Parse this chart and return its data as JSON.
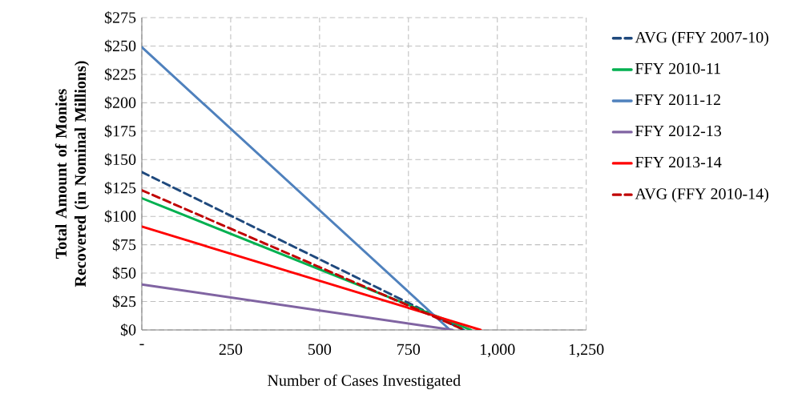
{
  "chart_data": {
    "type": "line",
    "xlabel": "Number of Cases Investigated",
    "ylabel": "Total Amount of Monies Recovered (in Nominal Millions)",
    "xlim": [
      0,
      1250
    ],
    "xticks": [
      {
        "value": 0,
        "label": "-"
      },
      250,
      500,
      750,
      {
        "value": 1000,
        "label": "1,000"
      },
      {
        "value": 1250,
        "label": "1,250"
      }
    ],
    "ylim": [
      0,
      275
    ],
    "yticks": [
      {
        "value": 0,
        "label": "$0"
      },
      {
        "value": 25,
        "label": "$25"
      },
      {
        "value": 50,
        "label": "$50"
      },
      {
        "value": 75,
        "label": "$75"
      },
      {
        "value": 100,
        "label": "$100"
      },
      {
        "value": 125,
        "label": "$125"
      },
      {
        "value": 150,
        "label": "$150"
      },
      {
        "value": 175,
        "label": "$175"
      },
      {
        "value": 200,
        "label": "$200"
      },
      {
        "value": 225,
        "label": "$225"
      },
      {
        "value": 250,
        "label": "$250"
      },
      {
        "value": 275,
        "label": "$275"
      }
    ],
    "grid": true,
    "legend": "right",
    "series": [
      {
        "name": "AVG (FFY 2007-10)",
        "color": "#1f497d",
        "line_style": "dashed",
        "x": [
          0,
          905
        ],
        "values": [
          139,
          0
        ]
      },
      {
        "name": "FFY 2010-11",
        "color": "#00b050",
        "x": [
          0,
          926
        ],
        "values": [
          116,
          0
        ]
      },
      {
        "name": "FFY 2011-12",
        "color": "#4f81bd",
        "x": [
          0,
          867
        ],
        "values": [
          249,
          0
        ]
      },
      {
        "name": "FFY 2012-13",
        "color": "#8064a2",
        "x": [
          0,
          874
        ],
        "values": [
          40,
          0
        ]
      },
      {
        "name": "FFY 2013-14",
        "color": "#ff0000",
        "x": [
          0,
          953
        ],
        "values": [
          91,
          0
        ]
      },
      {
        "name": "AVG (FFY 2010-14)",
        "color": "#c00000",
        "line_style": "dashed",
        "x": [
          0,
          908
        ],
        "values": [
          123,
          0
        ]
      }
    ]
  }
}
